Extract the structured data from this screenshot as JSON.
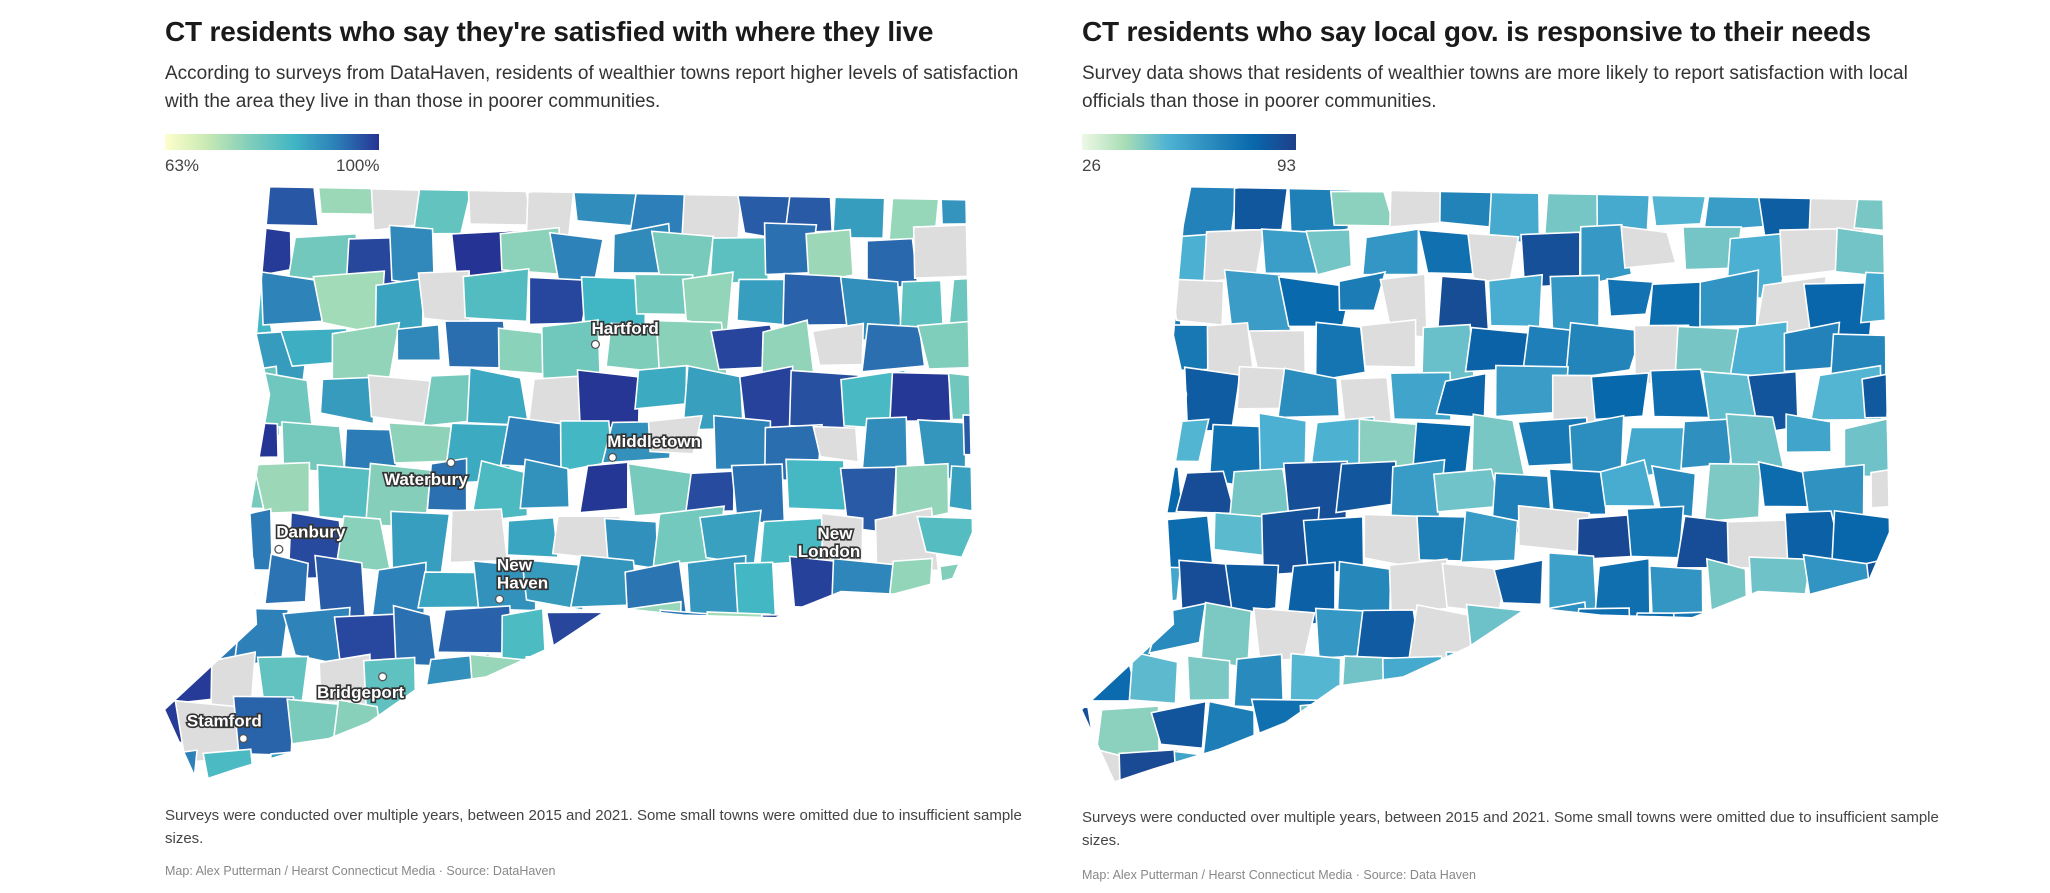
{
  "chart_data": [
    {
      "type": "heatmap",
      "title": "CT residents who say they're satisfied with where they live",
      "subtitle": "According to surveys from DataHaven, residents of wealthier towns report higher levels of satisfaction with the area they live in than those in poorer communities.",
      "legend": {
        "min_label": "63%",
        "max_label": "100%",
        "min": 63,
        "max": 100,
        "colors": [
          "#ffffcc",
          "#c7e9b4",
          "#7fcdbb",
          "#41b6c4",
          "#2c7fb8",
          "#253494"
        ]
      },
      "missing_color": "#dddddd",
      "towns": [
        "Hartford",
        "Middletown",
        "Waterbury",
        "Danbury",
        "New Haven",
        "New London",
        "Bridgeport",
        "Stamford"
      ],
      "town_labels": {
        "hartford": "Hartford",
        "middletown": "Middletown",
        "waterbury": "Waterbury",
        "danbury": "Danbury",
        "new_haven_1": "New",
        "new_haven_2": "Haven",
        "new_london_1": "New",
        "new_london_2": "London",
        "bridgeport": "Bridgeport",
        "stamford": "Stamford"
      },
      "footnote": "Surveys were conducted over multiple years, between 2015 and 2021. Some small towns were omitted due to insufficient sample sizes.",
      "credit": "Map: Alex Putterman / Hearst Connecticut Media · Source: DataHaven"
    },
    {
      "type": "heatmap",
      "title": "CT residents who say local gov. is responsive to their needs",
      "subtitle": "Survey data shows that residents of wealthier towns are more likely to report satisfaction with local officials than those in poorer communities.",
      "legend": {
        "min_label": "26",
        "max_label": "93",
        "min": 26,
        "max": 93,
        "colors": [
          "#eef8e6",
          "#a8ddb5",
          "#4eb3d3",
          "#2b8cbe",
          "#0868ac",
          "#1f3f8a"
        ]
      },
      "missing_color": "#dddddd",
      "footnote": "Surveys were conducted over multiple years, between 2015 and 2021. Some small towns were omitted due to insufficient sample sizes.",
      "credit": "Map: Alex Putterman / Hearst Connecticut Media · Source: Data Haven"
    }
  ]
}
